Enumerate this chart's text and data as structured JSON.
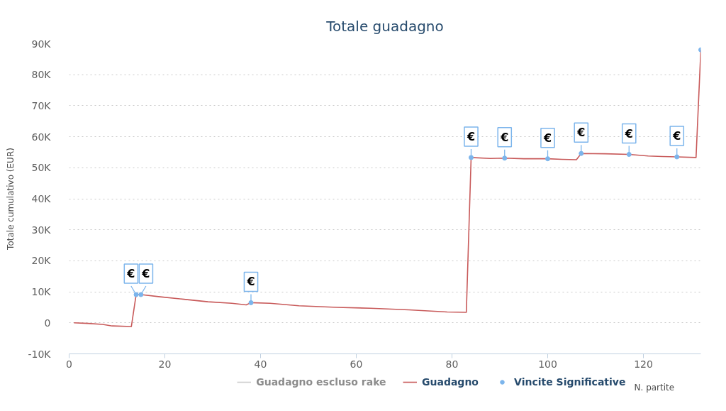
{
  "chart_data": {
    "type": "line",
    "title": "Totale guadagno",
    "xlabel": "N. partite",
    "ylabel": "Totale cumulativo (EUR)",
    "xlim": [
      0,
      132
    ],
    "xticks": [
      0,
      20,
      40,
      60,
      80,
      100,
      120
    ],
    "ylim": [
      -10000,
      90000
    ],
    "yticks": [
      {
        "value": -10000,
        "label": "-10K"
      },
      0,
      {
        "value": 10000,
        "label": "10K"
      },
      {
        "value": 20000,
        "label": "20K"
      },
      {
        "value": 30000,
        "label": "30K"
      },
      {
        "value": 40000,
        "label": "40K"
      },
      {
        "value": 50000,
        "label": "50K"
      },
      {
        "value": 60000,
        "label": "60K"
      },
      {
        "value": 70000,
        "label": "70K"
      },
      {
        "value": 80000,
        "label": "80K"
      },
      {
        "value": 90000,
        "label": "90K"
      }
    ],
    "grid": "y",
    "legend": "bottom",
    "series": [
      {
        "name": "Guadagno escluso rake",
        "color": "#cccccc"
      },
      {
        "name": "Guadagno",
        "color": "#c85a5a",
        "x": [
          1,
          4,
          7,
          9,
          13,
          14,
          15,
          19,
          24,
          29,
          34,
          37,
          38,
          42,
          48,
          56,
          63,
          71,
          79,
          83,
          84,
          88,
          91,
          95,
          100,
          103,
          106,
          107,
          112,
          117,
          121,
          124,
          127,
          131,
          132
        ],
        "values": [
          0,
          -200,
          -500,
          -1000,
          -1200,
          9100,
          9100,
          8400,
          7600,
          6800,
          6300,
          5800,
          6500,
          6300,
          5500,
          5000,
          4700,
          4200,
          3500,
          3400,
          53300,
          53000,
          53100,
          52900,
          52900,
          52700,
          52600,
          54600,
          54500,
          54300,
          53800,
          53600,
          53500,
          53300,
          88000
        ]
      },
      {
        "name": "Vincite Significative",
        "type": "scatter",
        "marker": "circle",
        "color": "#7cb5ec",
        "x": [
          14,
          15,
          38,
          84,
          91,
          100,
          107,
          117,
          127,
          132
        ],
        "values": [
          9100,
          9100,
          6500,
          53300,
          53100,
          52900,
          54600,
          54300,
          53500,
          88000
        ]
      }
    ],
    "annotations": [
      {
        "text": "€",
        "x": 14,
        "y": 9100
      },
      {
        "text": "€",
        "x": 15,
        "y": 9100
      },
      {
        "text": "€",
        "x": 38,
        "y": 6500
      },
      {
        "text": "€",
        "x": 84,
        "y": 53300
      },
      {
        "text": "€",
        "x": 91,
        "y": 53100
      },
      {
        "text": "€",
        "x": 100,
        "y": 52900
      },
      {
        "text": "€",
        "x": 107,
        "y": 54600
      },
      {
        "text": "€",
        "x": 117,
        "y": 54300
      },
      {
        "text": "€",
        "x": 127,
        "y": 53500
      }
    ]
  }
}
